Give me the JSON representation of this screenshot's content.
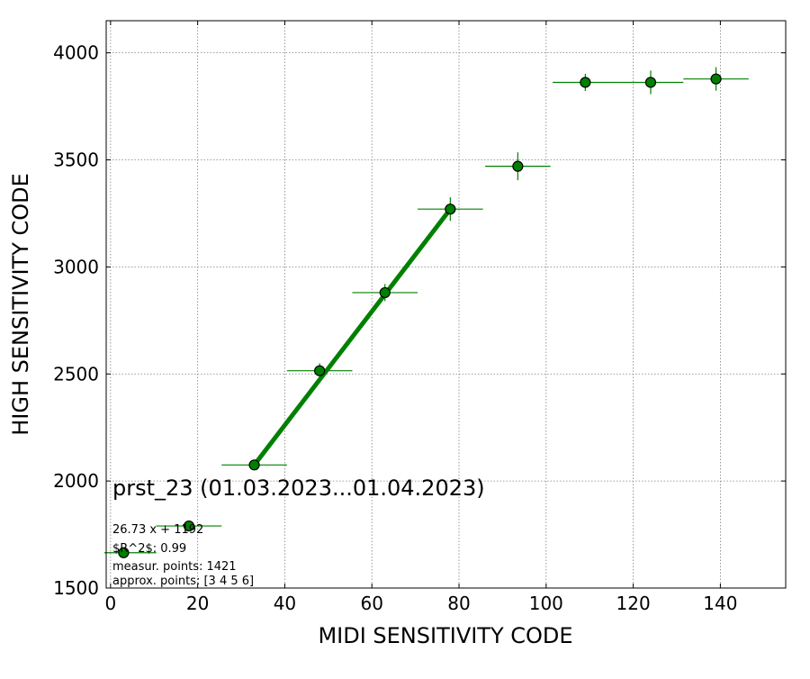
{
  "chart_data": {
    "type": "scatter",
    "title": "",
    "xlabel": "MIDI SENSITIVITY CODE",
    "ylabel": "HIGH SENSITIVITY CODE",
    "xlim": [
      -1,
      155
    ],
    "ylim": [
      1500,
      4150
    ],
    "x_ticks": [
      0,
      20,
      40,
      60,
      80,
      100,
      120,
      140
    ],
    "y_ticks": [
      1500,
      2000,
      2500,
      3000,
      3500,
      4000
    ],
    "x_tick_labels": [
      "0",
      "20",
      "40",
      "60",
      "80",
      "100",
      "120",
      "140"
    ],
    "y_tick_labels": [
      "1500",
      "2000",
      "2500",
      "3000",
      "3500",
      "4000"
    ],
    "grid": true,
    "colors": {
      "marker": "#008000",
      "fit_line": "#008000",
      "grid": "#808080"
    },
    "series": [
      {
        "marker": "circle",
        "x": [
          3,
          18,
          33,
          48,
          63,
          78,
          93.5,
          109,
          124,
          139
        ],
        "y": [
          1665,
          1790,
          2075,
          2515,
          2880,
          3270,
          3470,
          3862,
          3862,
          3878
        ],
        "x_err": [
          7.5,
          7.5,
          7.5,
          7.5,
          7.5,
          7.5,
          7.5,
          7.5,
          7.5,
          7.5
        ],
        "y_err": [
          20,
          20,
          22,
          35,
          40,
          55,
          65,
          40,
          55,
          55
        ]
      }
    ],
    "fit_line": {
      "x": [
        33,
        78
      ],
      "y": [
        2075,
        3270
      ]
    },
    "annotations": {
      "label": "prst_23 (01.03.2023...01.04.2023)",
      "equation": "26.73 x + 1192",
      "r2": "$R^2$: 0.99",
      "measur_points": "measur. points: 1421",
      "approx_points": "approx. points: [3 4 5 6]"
    }
  }
}
